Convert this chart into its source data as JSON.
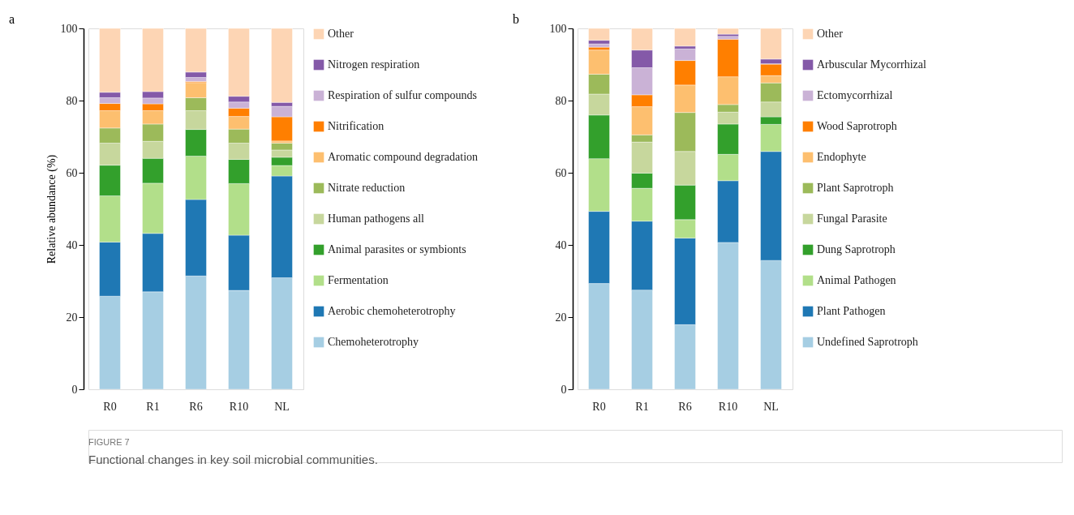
{
  "chart_data": [
    {
      "type": "bar",
      "title": "a",
      "ylabel": "Relative abundance (%)",
      "stacked": true,
      "legend": "right",
      "grid": false,
      "categories": [
        "R0",
        "R1",
        "R6",
        "R10",
        "NL"
      ],
      "ylim": [
        0,
        100
      ],
      "yticks": [
        0,
        20,
        40,
        60,
        80,
        100
      ],
      "series": [
        {
          "name": "Chemoheterotrophy",
          "color": "#a6cee3",
          "values": [
            25.8,
            27.0,
            31.4,
            27.4,
            30.9
          ]
        },
        {
          "name": "Aerobic chemoheterotrophy",
          "color": "#1f78b4",
          "values": [
            15.0,
            16.2,
            21.2,
            15.3,
            28.2
          ]
        },
        {
          "name": "Fermentation",
          "color": "#b2df8a",
          "values": [
            12.8,
            13.9,
            12.0,
            14.3,
            2.9
          ]
        },
        {
          "name": "Animal parasites or symbionts",
          "color": "#33a02c",
          "values": [
            8.5,
            6.9,
            7.4,
            6.7,
            2.3
          ]
        },
        {
          "name": "Human pathogens all",
          "color": "#c7d79d",
          "values": [
            6.1,
            4.7,
            5.2,
            4.5,
            2.0
          ]
        },
        {
          "name": "Nitrate reduction",
          "color": "#9cba5a",
          "values": [
            4.2,
            4.8,
            3.6,
            3.9,
            1.9
          ]
        },
        {
          "name": "Aromatic compound degradation",
          "color": "#fdbf6f",
          "values": [
            4.8,
            3.7,
            4.2,
            3.5,
            0.6
          ]
        },
        {
          "name": "Nitrification",
          "color": "#ff7f00",
          "values": [
            2.0,
            1.9,
            0.3,
            2.3,
            6.7
          ]
        },
        {
          "name": "Respiration of sulfur compounds",
          "color": "#cab2d6",
          "values": [
            1.6,
            1.6,
            1.1,
            1.7,
            2.9
          ]
        },
        {
          "name": "Nitrogen respiration",
          "color": "#8459a8",
          "values": [
            1.5,
            1.8,
            1.5,
            1.6,
            1.1
          ]
        },
        {
          "name": "Other",
          "color": "#fdd5b4",
          "values": [
            17.7,
            17.5,
            12.1,
            18.8,
            20.5
          ]
        }
      ],
      "annotations": [
        "FIGURE 7",
        "Functional changes in key soil microbial communities."
      ]
    },
    {
      "type": "bar",
      "title": "b",
      "stacked": true,
      "legend": "right",
      "grid": false,
      "categories": [
        "R0",
        "R1",
        "R6",
        "R10",
        "NL"
      ],
      "ylim": [
        0,
        100
      ],
      "yticks": [
        0,
        20,
        40,
        60,
        80,
        100
      ],
      "series": [
        {
          "name": "Undefined Saprotroph",
          "color": "#a6cee3",
          "values": [
            29.3,
            27.5,
            17.9,
            40.7,
            35.7
          ]
        },
        {
          "name": "Plant Pathogen",
          "color": "#1f78b4",
          "values": [
            20.0,
            19.1,
            24.0,
            17.1,
            30.2
          ]
        },
        {
          "name": "Animal Pathogen",
          "color": "#b2df8a",
          "values": [
            14.6,
            9.1,
            5.1,
            7.3,
            7.5
          ]
        },
        {
          "name": "Dung Saprotroph",
          "color": "#33a02c",
          "values": [
            12.1,
            4.2,
            9.6,
            8.4,
            2.1
          ]
        },
        {
          "name": "Fungal Parasite",
          "color": "#c7d79d",
          "values": [
            5.8,
            8.6,
            9.3,
            3.3,
            4.1
          ]
        },
        {
          "name": "Plant Saprotroph",
          "color": "#9cba5a",
          "values": [
            5.5,
            2.0,
            10.8,
            2.1,
            5.3
          ]
        },
        {
          "name": "Endophyte",
          "color": "#fdbf6f",
          "values": [
            6.7,
            7.8,
            7.6,
            7.7,
            2.0
          ]
        },
        {
          "name": "Wood Saprotroph",
          "color": "#ff7f00",
          "values": [
            0.8,
            3.3,
            6.8,
            10.4,
            3.2
          ]
        },
        {
          "name": "Ectomycorrhizal",
          "color": "#cab2d6",
          "values": [
            0.9,
            7.5,
            3.2,
            0.8,
            0.1
          ]
        },
        {
          "name": "Arbuscular Mycorrhizal",
          "color": "#8459a8",
          "values": [
            1.0,
            4.9,
            0.8,
            0.6,
            1.3
          ]
        },
        {
          "name": "Other",
          "color": "#fdd5b4",
          "values": [
            3.3,
            6.0,
            4.9,
            1.6,
            8.5
          ]
        }
      ]
    }
  ]
}
